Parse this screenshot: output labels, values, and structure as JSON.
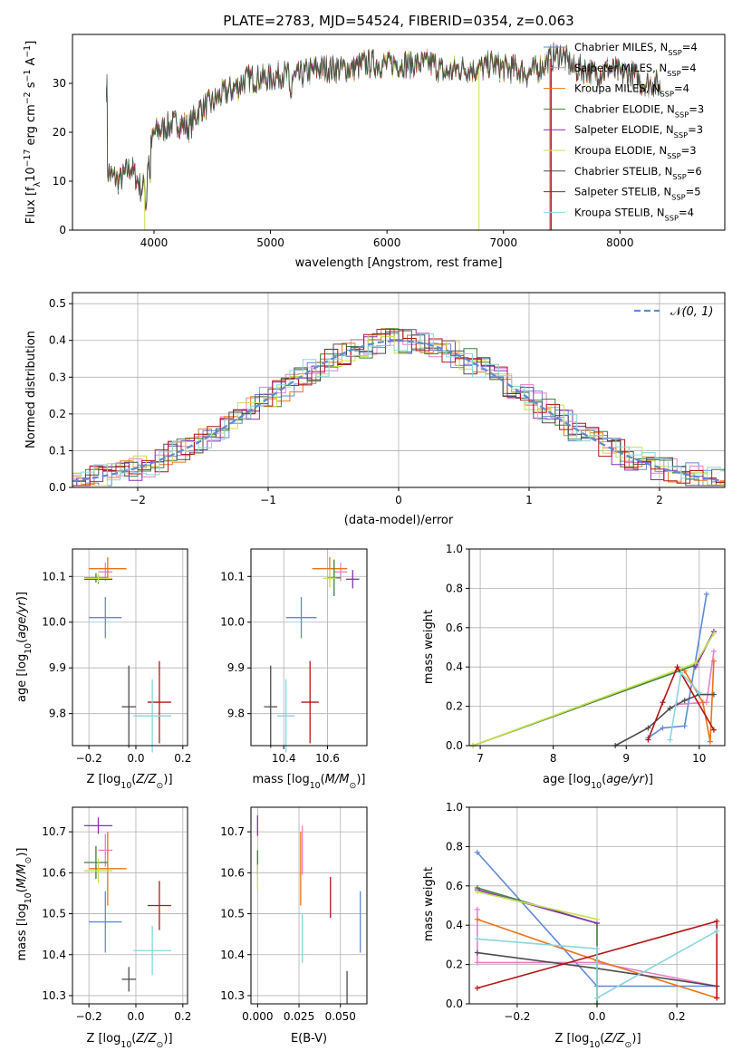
{
  "title": "PLATE=2783, MJD=54524, FIBERID=0354, z=0.063",
  "colors": {
    "Chabrier MILES": "#5f8ad6",
    "Salpeter MILES": "#e87ec8",
    "Kroupa MILES": "#e8751a",
    "Chabrier ELODIE": "#3f7f3f",
    "Salpeter ELODIE": "#8a2fb5",
    "Kroupa ELODIE": "#c8e050",
    "Chabrier STELIB": "#4d4d4d",
    "Salpeter STELIB": "#b31515",
    "Kroupa STELIB": "#88d6dc"
  },
  "chart_data": [
    {
      "type": "line",
      "xlabel": "wavelength [Angstrom, rest frame]",
      "ylabel": "Flux [f_λ10^-17 erg cm^-2 s^-1 A^-1]",
      "xlim": [
        3300,
        8900
      ],
      "ylim": [
        0,
        40
      ],
      "xticks": [
        4000,
        5000,
        6000,
        7000,
        8000
      ],
      "yticks": [
        0,
        10,
        20,
        30
      ],
      "legend": "upper-right",
      "series_names": [
        "Chabrier MILES, N_SSP=4",
        "Salpeter MILES, N_SSP=4",
        "Kroupa MILES, N_SSP=4",
        "Chabrier ELODIE, N_SSP=3",
        "Salpeter ELODIE, N_SSP=3",
        "Kroupa ELODIE, N_SSP=3",
        "Chabrier STELIB, N_SSP=6",
        "Salpeter STELIB, N_SSP=5",
        "Kroupa STELIB, N_SSP=4"
      ],
      "envelope_points": [
        [
          3600,
          12
        ],
        [
          3700,
          10
        ],
        [
          3800,
          13
        ],
        [
          3900,
          8
        ],
        [
          3950,
          14
        ],
        [
          4000,
          20
        ],
        [
          4100,
          21
        ],
        [
          4200,
          22
        ],
        [
          4300,
          21
        ],
        [
          4400,
          25
        ],
        [
          4500,
          26
        ],
        [
          4600,
          28
        ],
        [
          4700,
          29
        ],
        [
          4800,
          31
        ],
        [
          4900,
          31
        ],
        [
          5000,
          31
        ],
        [
          5100,
          32
        ],
        [
          5200,
          31
        ],
        [
          5300,
          32
        ],
        [
          5400,
          33
        ],
        [
          5500,
          33
        ],
        [
          5600,
          33
        ],
        [
          5700,
          33
        ],
        [
          5800,
          34
        ],
        [
          5900,
          34
        ],
        [
          6000,
          34
        ],
        [
          6100,
          34
        ],
        [
          6200,
          34
        ],
        [
          6300,
          34
        ],
        [
          6400,
          34
        ],
        [
          6500,
          32
        ],
        [
          6600,
          33
        ],
        [
          6700,
          33
        ],
        [
          6800,
          33
        ],
        [
          6900,
          34
        ],
        [
          7000,
          33
        ],
        [
          7100,
          33
        ],
        [
          7200,
          32
        ],
        [
          7300,
          33
        ],
        [
          7400,
          35
        ],
        [
          7500,
          36
        ],
        [
          7600,
          33
        ],
        [
          7700,
          33
        ],
        [
          7800,
          32
        ],
        [
          7900,
          33
        ],
        [
          8000,
          32
        ],
        [
          8100,
          32
        ],
        [
          8200,
          30
        ],
        [
          8300,
          30
        ],
        [
          8350,
          29
        ]
      ]
    },
    {
      "type": "line",
      "xlabel": "(data-model)/error",
      "ylabel": "Normed distribution",
      "xlim": [
        -2.5,
        2.5
      ],
      "ylim": [
        0,
        0.53
      ],
      "xticks": [
        -2,
        -1,
        0,
        1,
        2
      ],
      "yticks": [
        0.0,
        0.1,
        0.2,
        0.3,
        0.4,
        0.5
      ],
      "legend": "upper-right",
      "reference_curve": "N(0,1)"
    },
    {
      "type": "scatter",
      "xlabel": "Z [log10(Z/Z⊙)]",
      "ylabel": "age [log10(age/yr)]",
      "xlim": [
        -0.27,
        0.22
      ],
      "ylim": [
        9.73,
        10.16
      ],
      "xticks": [
        -0.2,
        0.0,
        0.2
      ],
      "yticks": [
        9.8,
        9.9,
        10.0,
        10.1
      ],
      "points": [
        {
          "name": "Chabrier MILES",
          "x": -0.13,
          "y": 10.01,
          "xerr": 0.07,
          "yerr": 0.045
        },
        {
          "name": "Salpeter MILES",
          "x": -0.13,
          "y": 10.11,
          "xerr": 0.03,
          "yerr": 0.02
        },
        {
          "name": "Kroupa MILES",
          "x": -0.12,
          "y": 10.117,
          "xerr": 0.08,
          "yerr": 0.025
        },
        {
          "name": "Chabrier ELODIE",
          "x": -0.17,
          "y": 10.097,
          "xerr": 0.05,
          "yerr": 0.01
        },
        {
          "name": "Salpeter ELODIE",
          "x": -0.16,
          "y": 10.094,
          "xerr": 0.06,
          "yerr": 0.01
        },
        {
          "name": "Kroupa ELODIE",
          "x": -0.16,
          "y": 10.096,
          "xerr": 0.06,
          "yerr": 0.01
        },
        {
          "name": "Chabrier STELIB",
          "x": -0.03,
          "y": 9.815,
          "xerr": 0.03,
          "yerr": 0.09
        },
        {
          "name": "Salpeter STELIB",
          "x": 0.1,
          "y": 9.825,
          "xerr": 0.05,
          "yerr": 0.09
        },
        {
          "name": "Kroupa STELIB",
          "x": 0.07,
          "y": 9.795,
          "xerr": 0.08,
          "yerr": 0.08
        }
      ]
    },
    {
      "type": "scatter",
      "xlabel": "mass [log10(M/M⊙)]",
      "ylabel": "",
      "xlim": [
        10.25,
        10.78
      ],
      "ylim": [
        9.73,
        10.16
      ],
      "xticks": [
        10.4,
        10.6
      ],
      "yticks": [
        9.8,
        9.9,
        10.0,
        10.1
      ],
      "points": [
        {
          "name": "Chabrier MILES",
          "x": 10.48,
          "y": 10.01,
          "xerr": 0.07,
          "yerr": 0.045
        },
        {
          "name": "Salpeter MILES",
          "x": 10.66,
          "y": 10.11,
          "xerr": 0.03,
          "yerr": 0.02
        },
        {
          "name": "Kroupa MILES",
          "x": 10.61,
          "y": 10.117,
          "xerr": 0.08,
          "yerr": 0.025
        },
        {
          "name": "Chabrier ELODIE",
          "x": 10.63,
          "y": 10.097,
          "xerr": 0.03,
          "yerr": 0.04
        },
        {
          "name": "Salpeter ELODIE",
          "x": 10.715,
          "y": 10.094,
          "xerr": 0.03,
          "yerr": 0.02
        },
        {
          "name": "Kroupa ELODIE",
          "x": 10.61,
          "y": 10.096,
          "xerr": 0.03,
          "yerr": 0.02
        },
        {
          "name": "Chabrier STELIB",
          "x": 10.34,
          "y": 9.815,
          "xerr": 0.03,
          "yerr": 0.09
        },
        {
          "name": "Salpeter STELIB",
          "x": 10.52,
          "y": 9.825,
          "xerr": 0.04,
          "yerr": 0.09
        },
        {
          "name": "Kroupa STELIB",
          "x": 10.41,
          "y": 9.795,
          "xerr": 0.04,
          "yerr": 0.08
        }
      ]
    },
    {
      "type": "line",
      "xlabel": "age [log10(age/yr)]",
      "ylabel": "mass weight",
      "xlim": [
        6.85,
        10.35
      ],
      "ylim": [
        0,
        1.0
      ],
      "xticks": [
        7,
        8,
        9,
        10
      ],
      "yticks": [
        0.0,
        0.2,
        0.4,
        0.6,
        0.8,
        1.0
      ],
      "series": [
        {
          "name": "Chabrier MILES",
          "points": [
            [
              9.3,
              0.04
            ],
            [
              9.5,
              0.09
            ],
            [
              9.8,
              0.1
            ],
            [
              10.1,
              0.77
            ]
          ]
        },
        {
          "name": "Salpeter MILES",
          "points": [
            [
              9.7,
              0.21
            ],
            [
              10.1,
              0.22
            ],
            [
              10.2,
              0.48
            ]
          ]
        },
        {
          "name": "Kroupa MILES",
          "points": [
            [
              9.8,
              0.38
            ],
            [
              10.05,
              0.22
            ],
            [
              10.15,
              0.02
            ],
            [
              10.2,
              0.43
            ]
          ]
        },
        {
          "name": "Chabrier ELODIE",
          "points": [
            [
              6.9,
              0.0
            ],
            [
              9.95,
              0.41
            ],
            [
              10.2,
              0.58
            ]
          ]
        },
        {
          "name": "Salpeter ELODIE",
          "points": [
            [
              9.95,
              0.4
            ],
            [
              10.2,
              0.58
            ]
          ]
        },
        {
          "name": "Kroupa ELODIE",
          "points": [
            [
              6.9,
              0.0
            ],
            [
              9.95,
              0.42
            ],
            [
              10.2,
              0.57
            ]
          ]
        },
        {
          "name": "Chabrier STELIB",
          "points": [
            [
              8.85,
              0.0
            ],
            [
              9.3,
              0.09
            ],
            [
              9.6,
              0.19
            ],
            [
              9.8,
              0.23
            ],
            [
              10.0,
              0.26
            ],
            [
              10.2,
              0.26
            ]
          ]
        },
        {
          "name": "Salpeter STELIB",
          "points": [
            [
              9.3,
              0.03
            ],
            [
              9.5,
              0.22
            ],
            [
              9.7,
              0.4
            ],
            [
              10.2,
              0.08
            ]
          ]
        },
        {
          "name": "Kroupa STELIB",
          "points": [
            [
              9.6,
              0.03
            ],
            [
              9.75,
              0.37
            ],
            [
              10.0,
              0.27
            ]
          ]
        }
      ]
    },
    {
      "type": "scatter",
      "xlabel": "Z [log10(Z/Z⊙)]",
      "ylabel": "mass [log10(M/M⊙)]",
      "xlim": [
        -0.27,
        0.22
      ],
      "ylim": [
        10.28,
        10.76
      ],
      "xticks": [
        -0.2,
        0.0,
        0.2
      ],
      "yticks": [
        10.3,
        10.4,
        10.5,
        10.6,
        10.7
      ],
      "points": [
        {
          "name": "Chabrier MILES",
          "x": -0.13,
          "y": 10.48,
          "xerr": 0.07,
          "yerr": 0.075
        },
        {
          "name": "Salpeter MILES",
          "x": -0.13,
          "y": 10.655,
          "xerr": 0.03,
          "yerr": 0.04
        },
        {
          "name": "Kroupa MILES",
          "x": -0.12,
          "y": 10.61,
          "xerr": 0.08,
          "yerr": 0.09
        },
        {
          "name": "Chabrier ELODIE",
          "x": -0.17,
          "y": 10.625,
          "xerr": 0.05,
          "yerr": 0.04
        },
        {
          "name": "Salpeter ELODIE",
          "x": -0.16,
          "y": 10.715,
          "xerr": 0.06,
          "yerr": 0.02
        },
        {
          "name": "Kroupa ELODIE",
          "x": -0.16,
          "y": 10.605,
          "xerr": 0.06,
          "yerr": 0.03
        },
        {
          "name": "Chabrier STELIB",
          "x": -0.03,
          "y": 10.34,
          "xerr": 0.03,
          "yerr": 0.03
        },
        {
          "name": "Salpeter STELIB",
          "x": 0.1,
          "y": 10.52,
          "xerr": 0.05,
          "yerr": 0.06
        },
        {
          "name": "Kroupa STELIB",
          "x": 0.07,
          "y": 10.41,
          "xerr": 0.08,
          "yerr": 0.06
        }
      ]
    },
    {
      "type": "scatter",
      "xlabel": "E(B-V)",
      "ylabel": "",
      "xlim": [
        -0.004,
        0.066
      ],
      "ylim": [
        10.28,
        10.76
      ],
      "xticks": [
        0.0,
        0.025,
        0.05
      ],
      "yticks": [
        10.3,
        10.4,
        10.5,
        10.6,
        10.7
      ],
      "points": [
        {
          "name": "Chabrier MILES",
          "x": 0.062,
          "y": 10.48,
          "xerr": 0,
          "yerr": 0.075
        },
        {
          "name": "Salpeter MILES",
          "x": 0.027,
          "y": 10.655,
          "xerr": 0,
          "yerr": 0.06
        },
        {
          "name": "Kroupa MILES",
          "x": 0.026,
          "y": 10.61,
          "xerr": 0,
          "yerr": 0.09
        },
        {
          "name": "Chabrier ELODIE",
          "x": 0.0,
          "y": 10.625,
          "xerr": 0,
          "yerr": 0.03
        },
        {
          "name": "Salpeter ELODIE",
          "x": 0.0,
          "y": 10.715,
          "xerr": 0,
          "yerr": 0.025
        },
        {
          "name": "Kroupa ELODIE",
          "x": 0.0,
          "y": 10.59,
          "xerr": 0,
          "yerr": 0.03
        },
        {
          "name": "Chabrier STELIB",
          "x": 0.054,
          "y": 10.32,
          "xerr": 0,
          "yerr": 0.04
        },
        {
          "name": "Salpeter STELIB",
          "x": 0.044,
          "y": 10.54,
          "xerr": 0,
          "yerr": 0.05
        },
        {
          "name": "Kroupa STELIB",
          "x": 0.027,
          "y": 10.44,
          "xerr": 0,
          "yerr": 0.06
        }
      ]
    },
    {
      "type": "line",
      "xlabel": "Z [log10(Z/Z⊙)]",
      "ylabel": "mass weight",
      "xlim": [
        -0.32,
        0.32
      ],
      "ylim": [
        0,
        1.0
      ],
      "xticks": [
        -0.2,
        0.0,
        0.2
      ],
      "yticks": [
        0.0,
        0.2,
        0.4,
        0.6,
        0.8,
        1.0
      ],
      "series": [
        {
          "name": "Chabrier MILES",
          "points": [
            [
              -0.3,
              0.77
            ],
            [
              0.0,
              0.09
            ],
            [
              0.3,
              0.09
            ]
          ]
        },
        {
          "name": "Salpeter MILES",
          "points": [
            [
              -0.3,
              0.48
            ],
            [
              -0.3,
              0.21
            ],
            [
              0.0,
              0.21
            ],
            [
              0.3,
              0.09
            ]
          ]
        },
        {
          "name": "Kroupa MILES",
          "points": [
            [
              -0.3,
              0.43
            ],
            [
              0.0,
              0.22
            ],
            [
              0.3,
              0.03
            ]
          ]
        },
        {
          "name": "Chabrier ELODIE",
          "points": [
            [
              -0.3,
              0.59
            ],
            [
              0.0,
              0.41
            ],
            [
              0.0,
              0.0
            ]
          ]
        },
        {
          "name": "Salpeter ELODIE",
          "points": [
            [
              -0.3,
              0.58
            ],
            [
              0.0,
              0.41
            ]
          ]
        },
        {
          "name": "Kroupa ELODIE",
          "points": [
            [
              -0.3,
              0.57
            ],
            [
              0.0,
              0.43
            ]
          ]
        },
        {
          "name": "Chabrier STELIB",
          "points": [
            [
              -0.3,
              0.26
            ],
            [
              0.0,
              0.18
            ],
            [
              0.3,
              0.09
            ]
          ]
        },
        {
          "name": "Salpeter STELIB",
          "points": [
            [
              -0.3,
              0.08
            ],
            [
              0.3,
              0.42
            ],
            [
              0.3,
              0.03
            ]
          ]
        },
        {
          "name": "Kroupa STELIB",
          "points": [
            [
              -0.3,
              0.33
            ],
            [
              0.0,
              0.28
            ],
            [
              0.0,
              0.03
            ],
            [
              0.3,
              0.37
            ]
          ]
        }
      ]
    }
  ]
}
